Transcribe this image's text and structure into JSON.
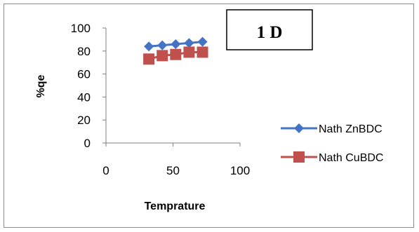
{
  "chart_data": {
    "type": "line",
    "panel_label": "1 D",
    "xlabel": "Temprature",
    "ylabel": "%qe",
    "xlim": [
      0,
      100
    ],
    "ylim": [
      0,
      100
    ],
    "x_ticks": [
      "0",
      "50",
      "100"
    ],
    "y_ticks": [
      "0",
      "20",
      "40",
      "60",
      "80",
      "100"
    ],
    "grid": false,
    "legend_position": "right",
    "series": [
      {
        "name": "Nath ZnBDC",
        "color": "#4472c4",
        "marker": "diamond",
        "x": [
          32,
          42,
          52,
          62,
          72
        ],
        "y": [
          84,
          85,
          86,
          87,
          88
        ]
      },
      {
        "name": "Nath CuBDC",
        "color": "#c0504d",
        "marker": "square",
        "x": [
          32,
          42,
          52,
          62,
          72
        ],
        "y": [
          73,
          76,
          77,
          79,
          79
        ]
      }
    ]
  }
}
